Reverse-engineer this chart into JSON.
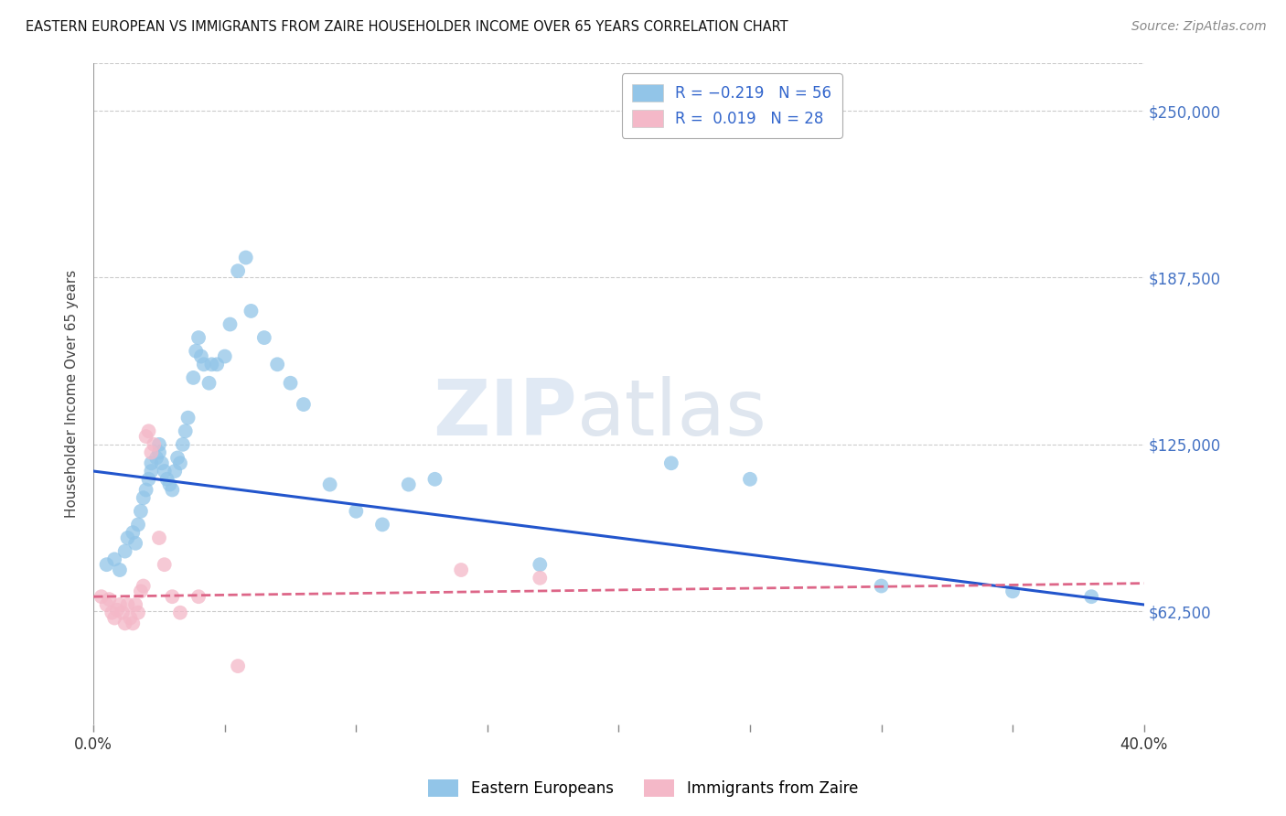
{
  "title": "EASTERN EUROPEAN VS IMMIGRANTS FROM ZAIRE HOUSEHOLDER INCOME OVER 65 YEARS CORRELATION CHART",
  "source": "Source: ZipAtlas.com",
  "ylabel": "Householder Income Over 65 years",
  "ytick_labels": [
    "$62,500",
    "$125,000",
    "$187,500",
    "$250,000"
  ],
  "ytick_values": [
    62500,
    125000,
    187500,
    250000
  ],
  "ymin": 20000,
  "ymax": 268000,
  "xmin": 0.0,
  "xmax": 0.4,
  "legend_label_blue": "Eastern Europeans",
  "legend_label_pink": "Immigrants from Zaire",
  "watermark_zip": "ZIP",
  "watermark_atlas": "atlas",
  "blue_scatter_x": [
    0.005,
    0.008,
    0.01,
    0.012,
    0.013,
    0.015,
    0.016,
    0.017,
    0.018,
    0.019,
    0.02,
    0.021,
    0.022,
    0.022,
    0.024,
    0.025,
    0.025,
    0.026,
    0.027,
    0.028,
    0.029,
    0.03,
    0.031,
    0.032,
    0.033,
    0.034,
    0.035,
    0.036,
    0.038,
    0.039,
    0.04,
    0.041,
    0.042,
    0.044,
    0.045,
    0.047,
    0.05,
    0.052,
    0.055,
    0.058,
    0.06,
    0.065,
    0.07,
    0.075,
    0.08,
    0.09,
    0.1,
    0.11,
    0.12,
    0.13,
    0.17,
    0.22,
    0.25,
    0.3,
    0.35,
    0.38
  ],
  "blue_scatter_y": [
    80000,
    82000,
    78000,
    85000,
    90000,
    92000,
    88000,
    95000,
    100000,
    105000,
    108000,
    112000,
    115000,
    118000,
    120000,
    122000,
    125000,
    118000,
    115000,
    112000,
    110000,
    108000,
    115000,
    120000,
    118000,
    125000,
    130000,
    135000,
    150000,
    160000,
    165000,
    158000,
    155000,
    148000,
    155000,
    155000,
    158000,
    170000,
    190000,
    195000,
    175000,
    165000,
    155000,
    148000,
    140000,
    110000,
    100000,
    95000,
    110000,
    112000,
    80000,
    118000,
    112000,
    72000,
    70000,
    68000
  ],
  "pink_scatter_x": [
    0.003,
    0.005,
    0.006,
    0.007,
    0.008,
    0.009,
    0.01,
    0.011,
    0.012,
    0.013,
    0.014,
    0.015,
    0.016,
    0.017,
    0.018,
    0.019,
    0.02,
    0.021,
    0.022,
    0.023,
    0.025,
    0.027,
    0.03,
    0.033,
    0.04,
    0.055,
    0.14,
    0.17
  ],
  "pink_scatter_y": [
    68000,
    65000,
    67000,
    62000,
    60000,
    63000,
    65000,
    62000,
    58000,
    65000,
    60000,
    58000,
    65000,
    62000,
    70000,
    72000,
    128000,
    130000,
    122000,
    125000,
    90000,
    80000,
    68000,
    62000,
    68000,
    42000,
    78000,
    75000
  ],
  "blue_line_x": [
    0.0,
    0.4
  ],
  "blue_line_y": [
    115000,
    65000
  ],
  "pink_line_x": [
    0.0,
    0.4
  ],
  "pink_line_y": [
    68000,
    73000
  ],
  "grid_color": "#cccccc",
  "background_color": "#ffffff",
  "blue_color": "#92c5e8",
  "pink_color": "#f4b8c8",
  "blue_line_color": "#2255cc",
  "pink_line_color": "#dd6688"
}
